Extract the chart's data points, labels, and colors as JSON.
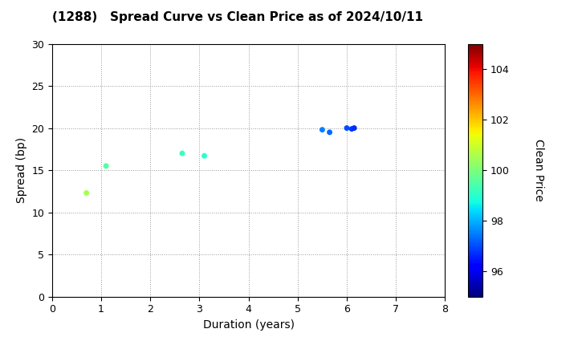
{
  "title": "(1288)   Spread Curve vs Clean Price as of 2024/10/11",
  "xlabel": "Duration (years)",
  "ylabel": "Spread (bp)",
  "colorbar_label": "Clean Price",
  "xlim": [
    0,
    8
  ],
  "ylim": [
    0,
    30
  ],
  "xticks": [
    0,
    1,
    2,
    3,
    4,
    5,
    6,
    7,
    8
  ],
  "yticks": [
    0,
    5,
    10,
    15,
    20,
    25,
    30
  ],
  "colorbar_ticks": [
    96,
    98,
    100,
    102,
    104
  ],
  "colorbar_vmin": 95,
  "colorbar_vmax": 105,
  "points": [
    {
      "duration": 0.7,
      "spread": 12.3,
      "clean_price": 100.5
    },
    {
      "duration": 1.1,
      "spread": 15.5,
      "clean_price": 99.5
    },
    {
      "duration": 2.65,
      "spread": 17.0,
      "clean_price": 99.2
    },
    {
      "duration": 3.1,
      "spread": 16.7,
      "clean_price": 99.0
    },
    {
      "duration": 5.5,
      "spread": 19.8,
      "clean_price": 97.5
    },
    {
      "duration": 5.65,
      "spread": 19.5,
      "clean_price": 97.3
    },
    {
      "duration": 6.0,
      "spread": 20.0,
      "clean_price": 97.0
    },
    {
      "duration": 6.1,
      "spread": 19.9,
      "clean_price": 96.8
    },
    {
      "duration": 6.15,
      "spread": 20.0,
      "clean_price": 96.7
    }
  ],
  "marker_size": 25,
  "background_color": "#ffffff",
  "grid_color": "#999999",
  "title_fontsize": 11,
  "axis_fontsize": 10,
  "tick_fontsize": 9
}
